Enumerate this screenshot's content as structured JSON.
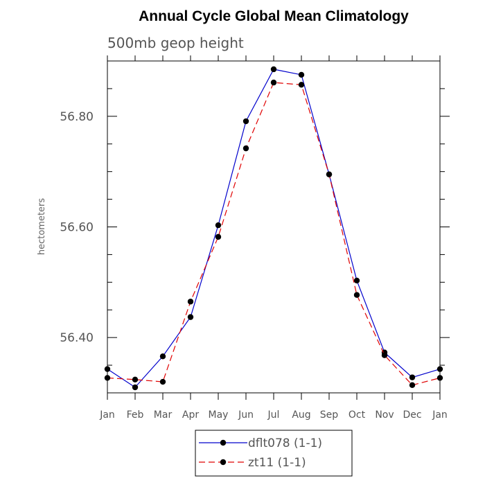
{
  "chart_data": {
    "type": "line",
    "title": "Annual Cycle Global Mean Climatology",
    "subtitle": "500mb geop height",
    "ylabel": "hectometers",
    "xlabel": "",
    "categories": [
      "Jan",
      "Feb",
      "Mar",
      "Apr",
      "May",
      "Jun",
      "Jul",
      "Aug",
      "Sep",
      "Oct",
      "Nov",
      "Dec",
      "Jan"
    ],
    "ylim": [
      56.3,
      56.9
    ],
    "yticks_labeled": [
      "56.40",
      "56.60",
      "56.80"
    ],
    "yticks_major": [
      56.4,
      56.6,
      56.8
    ],
    "yticks_minor": [
      56.35,
      56.45,
      56.5,
      56.55,
      56.65,
      56.7,
      56.75,
      56.85
    ],
    "grid": false,
    "legend_position": "bottom",
    "series": [
      {
        "name": "dflt078 (1-1)",
        "color": "#0000cc",
        "dash": "solid",
        "values": [
          56.343,
          56.31,
          56.366,
          56.437,
          56.603,
          56.791,
          56.885,
          56.875,
          56.695,
          56.503,
          56.373,
          56.328,
          56.343
        ]
      },
      {
        "name": "zt11 (1-1)",
        "color": "#e00000",
        "dash": "dashed",
        "values": [
          56.327,
          56.324,
          56.32,
          56.465,
          56.582,
          56.742,
          56.861,
          56.857,
          56.695,
          56.477,
          56.368,
          56.314,
          56.327
        ]
      }
    ]
  }
}
